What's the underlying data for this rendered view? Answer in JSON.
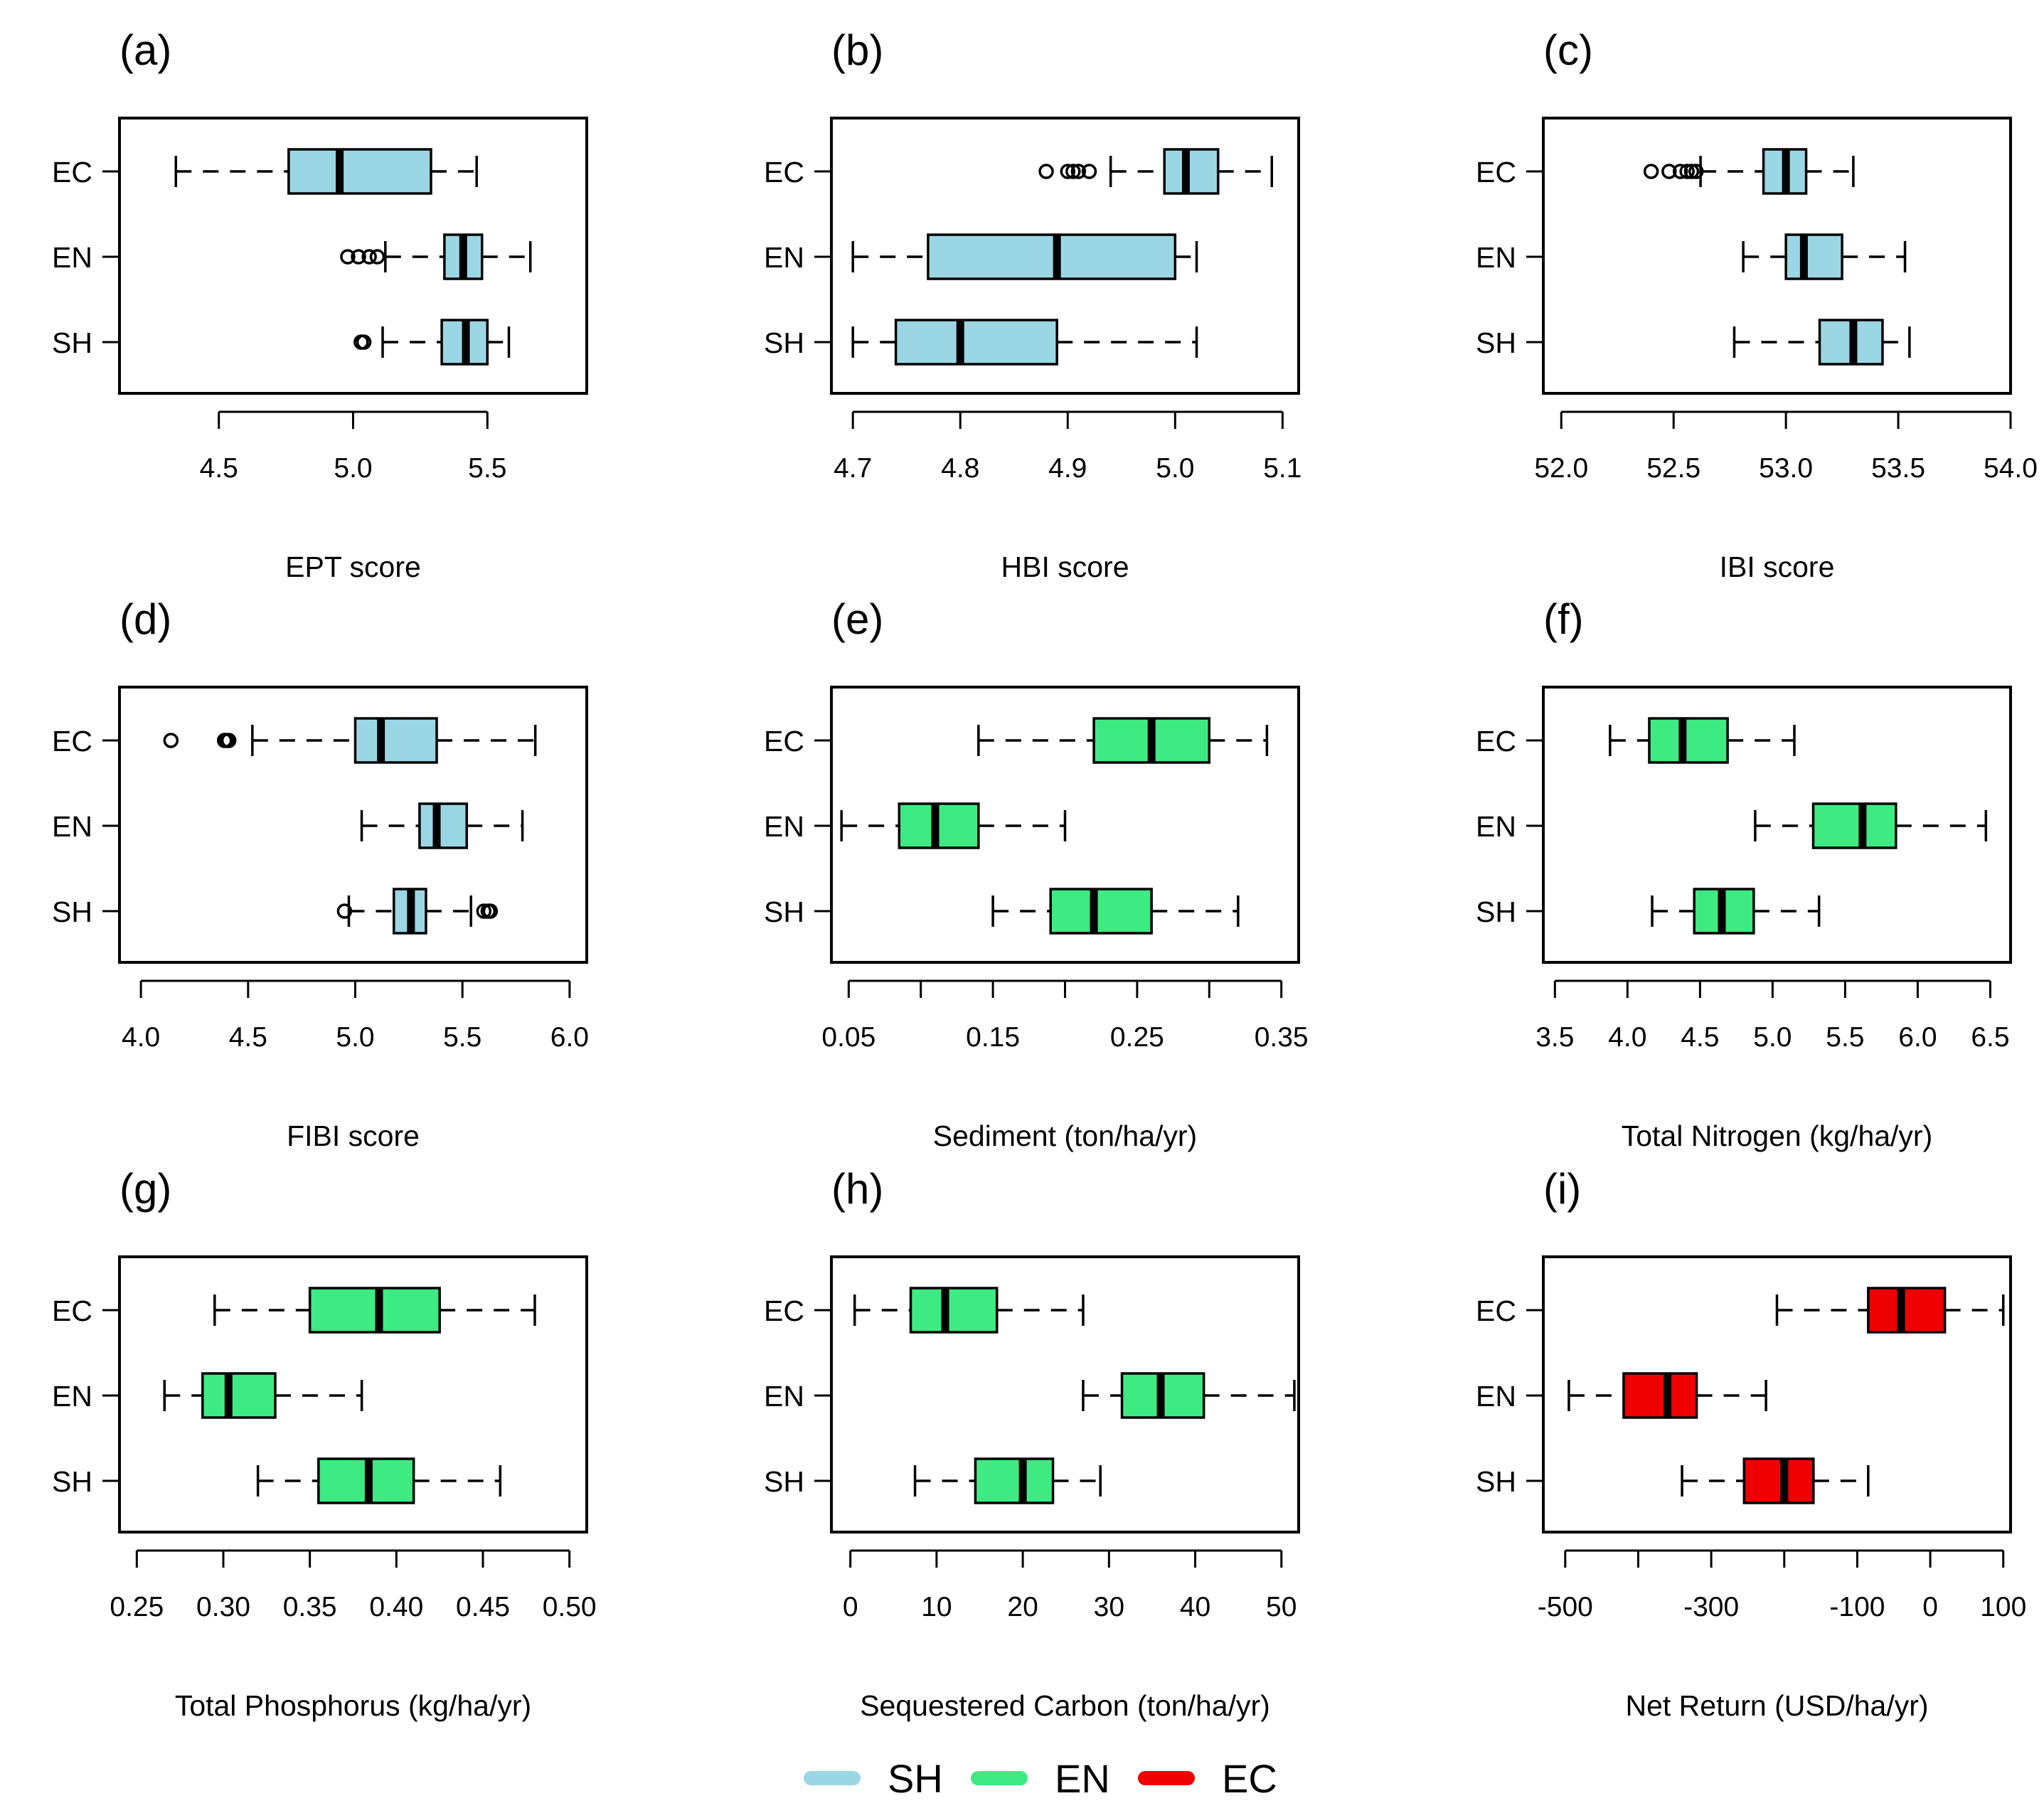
{
  "colors": {
    "SH": "#9bd6e5",
    "EN": "#3deb82",
    "EC": "#ee0000"
  },
  "legend": {
    "placement": "bottom-center",
    "entries": [
      {
        "label": "SH",
        "color": "#9bd6e5"
      },
      {
        "label": "EN",
        "color": "#3deb82"
      },
      {
        "label": "EC",
        "color": "#ee0000"
      }
    ]
  },
  "chart_data": [
    {
      "type": "boxplot",
      "panel_label": "(a)",
      "xlabel": "EPT score",
      "fill": "#9bd6e5",
      "categories": [
        "EC",
        "EN",
        "SH"
      ],
      "xlim": [
        4.13,
        5.87
      ],
      "ticks": [
        4.5,
        5.0,
        5.5
      ],
      "tick_labels": [
        "4.5",
        "5.0",
        "5.5"
      ],
      "boxes": [
        {
          "name": "EC",
          "whisker_low": 4.34,
          "q1": 4.76,
          "median": 4.95,
          "q3": 5.29,
          "whisker_high": 5.46,
          "outliers": []
        },
        {
          "name": "EN",
          "whisker_low": 5.12,
          "q1": 5.34,
          "median": 5.41,
          "q3": 5.48,
          "whisker_high": 5.66,
          "outliers": [
            4.98,
            5.02,
            5.06,
            5.09
          ]
        },
        {
          "name": "SH",
          "whisker_low": 5.11,
          "q1": 5.33,
          "median": 5.42,
          "q3": 5.5,
          "whisker_high": 5.58,
          "outliers": [
            5.03,
            5.04
          ]
        }
      ]
    },
    {
      "type": "boxplot",
      "panel_label": "(b)",
      "xlabel": "HBI score",
      "fill": "#9bd6e5",
      "categories": [
        "EC",
        "EN",
        "SH"
      ],
      "xlim": [
        4.68,
        5.115
      ],
      "ticks": [
        4.7,
        4.8,
        4.9,
        5.0,
        5.1
      ],
      "tick_labels": [
        "4.7",
        "4.8",
        "4.9",
        "5.0",
        "5.1"
      ],
      "boxes": [
        {
          "name": "EC",
          "whisker_low": 4.94,
          "q1": 4.99,
          "median": 5.01,
          "q3": 5.04,
          "whisker_high": 5.09,
          "outliers": [
            4.88,
            4.9,
            4.905,
            4.91,
            4.92
          ]
        },
        {
          "name": "EN",
          "whisker_low": 4.7,
          "q1": 4.77,
          "median": 4.89,
          "q3": 5.0,
          "whisker_high": 5.02,
          "outliers": []
        },
        {
          "name": "SH",
          "whisker_low": 4.7,
          "q1": 4.74,
          "median": 4.8,
          "q3": 4.89,
          "whisker_high": 5.02,
          "outliers": []
        }
      ]
    },
    {
      "type": "boxplot",
      "panel_label": "(c)",
      "xlabel": "IBI score",
      "fill": "#9bd6e5",
      "categories": [
        "EC",
        "EN",
        "SH"
      ],
      "xlim": [
        51.92,
        54.0
      ],
      "ticks": [
        52.0,
        52.5,
        53.0,
        53.5,
        54.0
      ],
      "tick_labels": [
        "52.0",
        "52.5",
        "53.0",
        "53.5",
        "54.0"
      ],
      "boxes": [
        {
          "name": "EC",
          "whisker_low": 52.62,
          "q1": 52.9,
          "median": 53.0,
          "q3": 53.09,
          "whisker_high": 53.3,
          "outliers": [
            52.4,
            52.48,
            52.53,
            52.56,
            52.58,
            52.6
          ]
        },
        {
          "name": "EN",
          "whisker_low": 52.81,
          "q1": 53.0,
          "median": 53.08,
          "q3": 53.25,
          "whisker_high": 53.53,
          "outliers": []
        },
        {
          "name": "SH",
          "whisker_low": 52.77,
          "q1": 53.15,
          "median": 53.3,
          "q3": 53.43,
          "whisker_high": 53.55,
          "outliers": []
        }
      ]
    },
    {
      "type": "boxplot",
      "panel_label": "(d)",
      "xlabel": "FIBI score",
      "fill": "#9bd6e5",
      "categories": [
        "EC",
        "EN",
        "SH"
      ],
      "xlim": [
        3.9,
        6.08
      ],
      "ticks": [
        4.0,
        4.5,
        5.0,
        5.5,
        6.0
      ],
      "tick_labels": [
        "4.0",
        "4.5",
        "5.0",
        "5.5",
        "6.0"
      ],
      "boxes": [
        {
          "name": "EC",
          "whisker_low": 4.52,
          "q1": 5.0,
          "median": 5.12,
          "q3": 5.38,
          "whisker_high": 5.84,
          "outliers": [
            4.14,
            4.39,
            4.4,
            4.41
          ]
        },
        {
          "name": "EN",
          "whisker_low": 5.03,
          "q1": 5.3,
          "median": 5.38,
          "q3": 5.52,
          "whisker_high": 5.78,
          "outliers": []
        },
        {
          "name": "SH",
          "whisker_low": 4.97,
          "q1": 5.18,
          "median": 5.26,
          "q3": 5.33,
          "whisker_high": 5.54,
          "outliers": [
            4.95,
            5.6,
            5.62,
            5.63
          ]
        }
      ]
    },
    {
      "type": "boxplot",
      "panel_label": "(e)",
      "xlabel": "Sediment (ton/ha/yr)",
      "fill": "#3deb82",
      "categories": [
        "EC",
        "EN",
        "SH"
      ],
      "xlim": [
        0.038,
        0.362
      ],
      "ticks": [
        0.05,
        0.1,
        0.15,
        0.2,
        0.25,
        0.3,
        0.35
      ],
      "tick_labels": [
        "0.05",
        "",
        "0.15",
        "",
        "0.25",
        "",
        "0.35"
      ],
      "boxes": [
        {
          "name": "EC",
          "whisker_low": 0.14,
          "q1": 0.22,
          "median": 0.26,
          "q3": 0.3,
          "whisker_high": 0.34,
          "outliers": []
        },
        {
          "name": "EN",
          "whisker_low": 0.045,
          "q1": 0.085,
          "median": 0.11,
          "q3": 0.14,
          "whisker_high": 0.2,
          "outliers": []
        },
        {
          "name": "SH",
          "whisker_low": 0.15,
          "q1": 0.19,
          "median": 0.22,
          "q3": 0.26,
          "whisker_high": 0.32,
          "outliers": []
        }
      ]
    },
    {
      "type": "boxplot",
      "panel_label": "(f)",
      "xlabel": "Total Nitrogen (kg/ha/yr)",
      "fill": "#3deb82",
      "categories": [
        "EC",
        "EN",
        "SH"
      ],
      "xlim": [
        3.42,
        6.64
      ],
      "ticks": [
        3.5,
        4.0,
        4.5,
        5.0,
        5.5,
        6.0,
        6.5
      ],
      "tick_labels": [
        "3.5",
        "4.0",
        "4.5",
        "5.0",
        "5.5",
        "6.0",
        "6.5"
      ],
      "boxes": [
        {
          "name": "EC",
          "whisker_low": 3.88,
          "q1": 4.15,
          "median": 4.38,
          "q3": 4.69,
          "whisker_high": 5.15,
          "outliers": []
        },
        {
          "name": "EN",
          "whisker_low": 4.88,
          "q1": 5.28,
          "median": 5.62,
          "q3": 5.85,
          "whisker_high": 6.47,
          "outliers": []
        },
        {
          "name": "SH",
          "whisker_low": 4.17,
          "q1": 4.46,
          "median": 4.65,
          "q3": 4.87,
          "whisker_high": 5.32,
          "outliers": []
        }
      ]
    },
    {
      "type": "boxplot",
      "panel_label": "(g)",
      "xlabel": "Total Phosphorus (kg/ha/yr)",
      "fill": "#3deb82",
      "categories": [
        "EC",
        "EN",
        "SH"
      ],
      "xlim": [
        0.24,
        0.51
      ],
      "ticks": [
        0.25,
        0.3,
        0.35,
        0.4,
        0.45,
        0.5
      ],
      "tick_labels": [
        "0.25",
        "0.30",
        "0.35",
        "0.40",
        "0.45",
        "0.50"
      ],
      "boxes": [
        {
          "name": "EC",
          "whisker_low": 0.295,
          "q1": 0.35,
          "median": 0.39,
          "q3": 0.425,
          "whisker_high": 0.48,
          "outliers": []
        },
        {
          "name": "EN",
          "whisker_low": 0.266,
          "q1": 0.288,
          "median": 0.303,
          "q3": 0.33,
          "whisker_high": 0.38,
          "outliers": []
        },
        {
          "name": "SH",
          "whisker_low": 0.32,
          "q1": 0.355,
          "median": 0.384,
          "q3": 0.41,
          "whisker_high": 0.46,
          "outliers": []
        }
      ]
    },
    {
      "type": "boxplot",
      "panel_label": "(h)",
      "xlabel": "Sequestered Carbon (ton/ha/yr)",
      "fill": "#3deb82",
      "categories": [
        "EC",
        "EN",
        "SH"
      ],
      "xlim": [
        -2.2,
        52.0
      ],
      "ticks": [
        0,
        10,
        20,
        30,
        40,
        50
      ],
      "tick_labels": [
        "0",
        "10",
        "20",
        "30",
        "40",
        "50"
      ],
      "boxes": [
        {
          "name": "EC",
          "whisker_low": 0.5,
          "q1": 7.0,
          "median": 11.0,
          "q3": 17.0,
          "whisker_high": 27.0,
          "outliers": []
        },
        {
          "name": "EN",
          "whisker_low": 27.0,
          "q1": 31.5,
          "median": 36.0,
          "q3": 41.0,
          "whisker_high": 51.5,
          "outliers": []
        },
        {
          "name": "SH",
          "whisker_low": 7.5,
          "q1": 14.5,
          "median": 20.0,
          "q3": 23.5,
          "whisker_high": 29.0,
          "outliers": []
        }
      ]
    },
    {
      "type": "boxplot",
      "panel_label": "(i)",
      "xlabel": "Net Return (USD/ha/yr)",
      "fill": "#ee0000",
      "categories": [
        "EC",
        "EN",
        "SH"
      ],
      "xlim": [
        -530,
        110
      ],
      "ticks": [
        -500,
        -400,
        -300,
        -200,
        -100,
        0,
        100
      ],
      "tick_labels": [
        "-500",
        "",
        "-300",
        "",
        "-100",
        "0",
        "100"
      ],
      "boxes": [
        {
          "name": "EC",
          "whisker_low": -210,
          "q1": -85,
          "median": -40,
          "q3": 20,
          "whisker_high": 100,
          "outliers": []
        },
        {
          "name": "EN",
          "whisker_low": -495,
          "q1": -420,
          "median": -360,
          "q3": -320,
          "whisker_high": -225,
          "outliers": []
        },
        {
          "name": "SH",
          "whisker_low": -340,
          "q1": -255,
          "median": -200,
          "q3": -160,
          "whisker_high": -85,
          "outliers": []
        }
      ]
    }
  ]
}
